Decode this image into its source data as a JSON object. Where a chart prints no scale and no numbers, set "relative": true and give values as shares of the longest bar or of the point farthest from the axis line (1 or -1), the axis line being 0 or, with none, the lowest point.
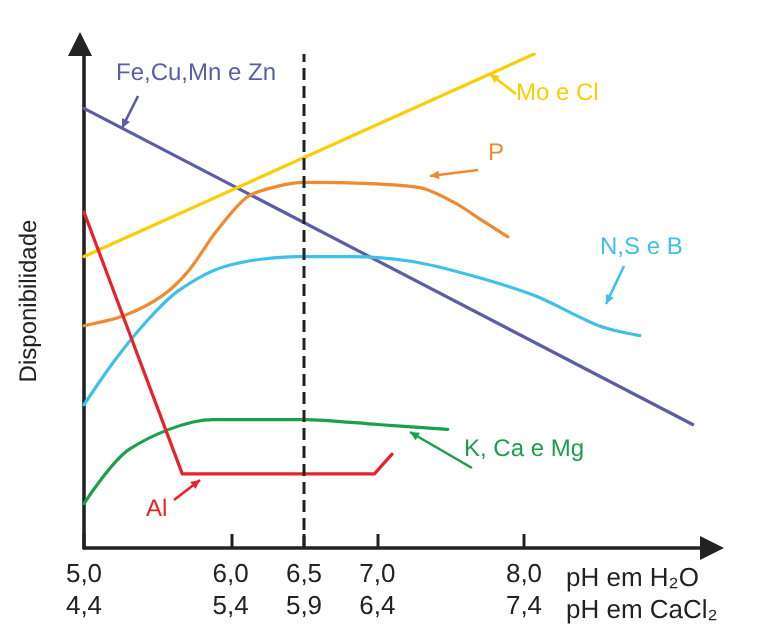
{
  "chart_data": {
    "type": "line",
    "relative": true,
    "ylabel": "Disponibilidade",
    "xlabel": "pH em H₂O",
    "x2label": "pH em CaCl₂",
    "xlim": [
      5,
      9.2
    ],
    "x2lim": [
      4.4,
      8.6
    ],
    "xticks": [
      {
        "value": 5,
        "label": "5,0"
      },
      {
        "value": 6,
        "label": "6,0"
      },
      {
        "value": 6.5,
        "label": "6,5"
      },
      {
        "value": 7,
        "label": "7,0"
      },
      {
        "value": 8,
        "label": "8,0"
      }
    ],
    "x2ticks": [
      {
        "value": 4.4,
        "label": "4,4"
      },
      {
        "value": 5.4,
        "label": "5,4"
      },
      {
        "value": 5.9,
        "label": "5,9"
      },
      {
        "value": 6.4,
        "label": "6,4"
      },
      {
        "value": 7.4,
        "label": "7,4"
      }
    ],
    "grid": false,
    "legend": "right",
    "marker": "none",
    "line_style": "solid",
    "ref_lines": [
      {
        "axis": "x",
        "value": 6.5,
        "color": "#222222",
        "line_style": "dashed"
      }
    ],
    "series": [
      {
        "name": "Fe,Cu,Mn e Zn",
        "color": "#5b5ea6",
        "x": [
          5,
          9.15
        ],
        "values": [
          0.89,
          0.25
        ]
      },
      {
        "name": "Mo e Cl",
        "color": "#ffcc00",
        "x": [
          5,
          8.07
        ],
        "values": [
          0.59,
          1.0
        ]
      },
      {
        "name": "P",
        "color": "#f08a30",
        "x": [
          5,
          5.27,
          5.53,
          5.71,
          5.9,
          6.11,
          6.29,
          6.5,
          7.28,
          7.52,
          7.73,
          7.89
        ],
        "values": [
          0.45,
          0.47,
          0.51,
          0.56,
          0.64,
          0.71,
          0.73,
          0.74,
          0.73,
          0.7,
          0.66,
          0.63
        ]
      },
      {
        "name": "N,S e B",
        "color": "#3ec0ea",
        "x": [
          5,
          5.21,
          5.43,
          5.64,
          5.96,
          6.46,
          6.82,
          7.24,
          7.66,
          8.08,
          8.51,
          8.79
        ],
        "values": [
          0.29,
          0.38,
          0.46,
          0.52,
          0.57,
          0.59,
          0.59,
          0.58,
          0.55,
          0.51,
          0.45,
          0.43
        ]
      },
      {
        "name": "K, Ca e Mg",
        "color": "#1aa04a",
        "x": [
          5,
          5.31,
          5.88,
          6.5,
          7.0,
          7.48
        ],
        "values": [
          0.09,
          0.2,
          0.26,
          0.26,
          0.25,
          0.24
        ]
      },
      {
        "name": "Al",
        "color": "#e8222a",
        "x": [
          5,
          5.67,
          6.98,
          7.1
        ],
        "values": [
          0.68,
          0.15,
          0.15,
          0.19
        ]
      }
    ]
  }
}
